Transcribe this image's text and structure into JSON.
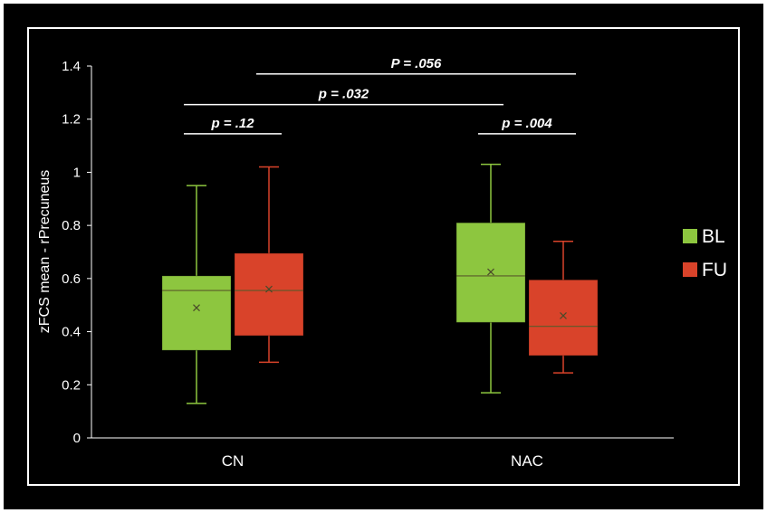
{
  "chart_data": {
    "type": "box",
    "categories": [
      "CN",
      "NAC"
    ],
    "ylabel": "zFCS mean - rPrecuneus",
    "ylim": [
      0,
      1.4
    ],
    "yticks": [
      "0",
      "0.2",
      "0.4",
      "0.6",
      "0.8",
      "1",
      "1.2",
      "1.4"
    ],
    "legend_position": "right",
    "grid": false,
    "series": [
      {
        "name": "BL",
        "color": "#8DC63F",
        "boxes": [
          {
            "category": "CN",
            "min": 0.13,
            "q1": 0.33,
            "median": 0.555,
            "q3": 0.61,
            "max": 0.95,
            "mean": 0.49
          },
          {
            "category": "NAC",
            "min": 0.17,
            "q1": 0.435,
            "median": 0.61,
            "q3": 0.81,
            "max": 1.03,
            "mean": 0.625
          }
        ]
      },
      {
        "name": "FU",
        "color": "#D9432A",
        "boxes": [
          {
            "category": "CN",
            "min": 0.285,
            "q1": 0.385,
            "median": 0.555,
            "q3": 0.695,
            "max": 1.02,
            "mean": 0.56
          },
          {
            "category": "NAC",
            "min": 0.245,
            "q1": 0.31,
            "median": 0.42,
            "q3": 0.595,
            "max": 0.74,
            "mean": 0.46
          }
        ]
      }
    ],
    "annotations": [
      {
        "text": "p = .12",
        "from": "CN-BL",
        "to": "CN-FU",
        "y": 1.145
      },
      {
        "text": "p = .004",
        "from": "NAC-BL",
        "to": "NAC-FU",
        "y": 1.145
      },
      {
        "text": "p = .032",
        "from": "CN-BL",
        "to": "NAC-BL",
        "y": 1.255
      },
      {
        "text": "P = .056",
        "from": "CN-FU",
        "to": "NAC-FU",
        "y": 1.37
      }
    ]
  }
}
